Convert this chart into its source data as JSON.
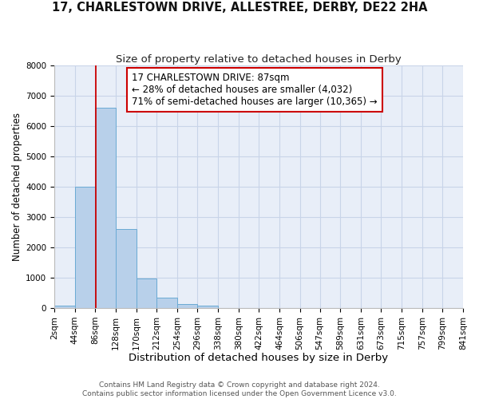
{
  "title": "17, CHARLESTOWN DRIVE, ALLESTREE, DERBY, DE22 2HA",
  "subtitle": "Size of property relative to detached houses in Derby",
  "xlabel": "Distribution of detached houses by size in Derby",
  "ylabel": "Number of detached properties",
  "bar_bins": [
    2,
    44,
    86,
    128,
    170,
    212,
    254,
    296,
    338,
    380,
    422,
    464,
    506,
    547,
    589,
    631,
    673,
    715,
    757,
    799,
    841
  ],
  "bar_heights": [
    80,
    4000,
    6600,
    2600,
    960,
    330,
    120,
    80,
    0,
    0,
    0,
    0,
    0,
    0,
    0,
    0,
    0,
    0,
    0,
    0
  ],
  "bar_color": "#b8d0ea",
  "bar_edge_color": "#6aaad4",
  "property_size": 87,
  "property_line_color": "#cc0000",
  "ann_line1": "17 CHARLESTOWN DRIVE: 87sqm",
  "ann_line2": "← 28% of detached houses are smaller (4,032)",
  "ann_line3": "71% of semi-detached houses are larger (10,365) →",
  "annotation_box_color": "#ffffff",
  "annotation_box_edge": "#cc0000",
  "ylim": [
    0,
    8000
  ],
  "yticks": [
    0,
    1000,
    2000,
    3000,
    4000,
    5000,
    6000,
    7000,
    8000
  ],
  "xtick_labels": [
    "2sqm",
    "44sqm",
    "86sqm",
    "128sqm",
    "170sqm",
    "212sqm",
    "254sqm",
    "296sqm",
    "338sqm",
    "380sqm",
    "422sqm",
    "464sqm",
    "506sqm",
    "547sqm",
    "589sqm",
    "631sqm",
    "673sqm",
    "715sqm",
    "757sqm",
    "799sqm",
    "841sqm"
  ],
  "grid_color": "#c8d4e8",
  "bg_color": "#e8eef8",
  "footer_text": "Contains HM Land Registry data © Crown copyright and database right 2024.\nContains public sector information licensed under the Open Government Licence v3.0.",
  "title_fontsize": 10.5,
  "subtitle_fontsize": 9.5,
  "xlabel_fontsize": 9.5,
  "ylabel_fontsize": 8.5,
  "tick_fontsize": 7.5,
  "annotation_fontsize": 8.5,
  "footer_fontsize": 6.5
}
